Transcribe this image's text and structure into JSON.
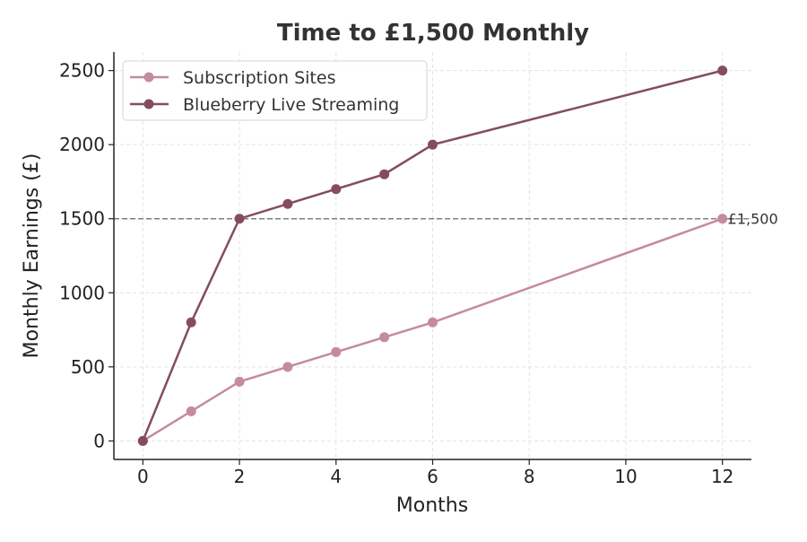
{
  "chart_data": {
    "type": "line",
    "title": "Time to £1,500 Monthly",
    "xlabel": "Months",
    "ylabel": "Monthly Earnings (£)",
    "xlim": [
      -0.6,
      12.6
    ],
    "ylim": [
      -125,
      2625
    ],
    "xticks": [
      0,
      2,
      4,
      6,
      8,
      10,
      12
    ],
    "yticks": [
      0,
      500,
      1000,
      1500,
      2000,
      2500
    ],
    "grid": true,
    "legend_position": "top-left",
    "series": [
      {
        "name": "Subscription Sites",
        "color": "#c48b9f",
        "x": [
          0,
          1,
          2,
          3,
          4,
          5,
          6,
          12
        ],
        "y": [
          0,
          200,
          400,
          500,
          600,
          700,
          800,
          1500
        ]
      },
      {
        "name": "Blueberry Live Streaming",
        "color": "#844c62",
        "x": [
          0,
          1,
          2,
          3,
          4,
          5,
          6,
          12
        ],
        "y": [
          0,
          800,
          1500,
          1600,
          1700,
          1800,
          2000,
          2500
        ]
      }
    ],
    "reference_line": {
      "y": 1500,
      "label": "£1,500",
      "color": "#808080"
    }
  }
}
